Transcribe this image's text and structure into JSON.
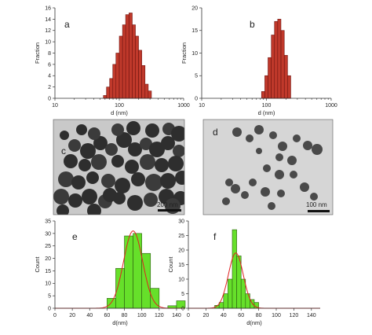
{
  "panel_letters": [
    "a",
    "b",
    "c",
    "d",
    "e",
    "f"
  ],
  "scale_bars": [
    "200 nm",
    "100 nm"
  ],
  "colors": {
    "histogram_top_fill": "#c0392b",
    "histogram_top_stroke": "#6e1410",
    "histogram_bottom_fill": "#66e02a",
    "histogram_bottom_stroke": "#2a5a10",
    "gaussian_fit": "#e02020",
    "tem_background_c": "#c9c9c9",
    "tem_background_d": "#d6d6d6",
    "particle_dark": "#2e2e2e"
  },
  "chart_data": [
    {
      "id": "a",
      "type": "bar",
      "xscale": "log",
      "xlim": [
        10,
        1000
      ],
      "ylim": [
        0,
        16
      ],
      "xticks": [
        10,
        100,
        1000
      ],
      "yticks": [
        0,
        2,
        4,
        6,
        8,
        10,
        12,
        14,
        16
      ],
      "xlabel": "d (nm)",
      "ylabel": "Fraction",
      "bin_step_log10": 0.05,
      "bin_centers": [
        60,
        67,
        75,
        84,
        94,
        106,
        119,
        133,
        150,
        168,
        188,
        211,
        237,
        266,
        298
      ],
      "values": [
        0.5,
        2,
        3.5,
        6,
        8,
        11,
        13,
        14.8,
        15.1,
        13,
        11,
        8.5,
        5.8,
        2.5,
        1.3
      ]
    },
    {
      "id": "b",
      "type": "bar",
      "xscale": "log",
      "xlim": [
        10,
        1000
      ],
      "ylim": [
        0,
        20
      ],
      "xticks": [
        10,
        100,
        1000
      ],
      "yticks": [
        0,
        5,
        10,
        15,
        20
      ],
      "xlabel": "d (nm)",
      "ylabel": "Fraction",
      "bin_step_log10": 0.05,
      "bin_centers": [
        89,
        100,
        112,
        126,
        141,
        158,
        178,
        200,
        224
      ],
      "values": [
        1.5,
        5,
        9,
        14,
        17,
        17.5,
        15,
        9.5,
        5
      ]
    },
    {
      "id": "e",
      "type": "bar",
      "xlim": [
        0,
        150
      ],
      "ylim": [
        0,
        35
      ],
      "xticks": [
        0,
        20,
        40,
        60,
        80,
        100,
        120,
        140
      ],
      "yticks": [
        0,
        5,
        10,
        15,
        20,
        25,
        30,
        35
      ],
      "xlabel": "d(nm)",
      "ylabel": "Count",
      "bin_width": 10,
      "bin_centers": [
        65,
        75,
        85,
        95,
        105,
        115,
        125,
        135,
        145
      ],
      "values": [
        4,
        16,
        29,
        30,
        22,
        8,
        0,
        1,
        3
      ],
      "fit": {
        "type": "gaussian",
        "amplitude": 31,
        "mean": 90,
        "sd": 11
      }
    },
    {
      "id": "f",
      "type": "bar",
      "xlim": [
        0,
        150
      ],
      "ylim": [
        0,
        30
      ],
      "xticks": [
        0,
        20,
        40,
        60,
        80,
        100,
        120,
        140
      ],
      "yticks": [
        0,
        5,
        10,
        15,
        20,
        25,
        30
      ],
      "xlabel": "d(nm)",
      "ylabel": "Count",
      "bin_width": 5,
      "bin_centers": [
        32.5,
        37.5,
        42.5,
        47.5,
        52.5,
        57.5,
        62.5,
        67.5,
        72.5,
        77.5
      ],
      "values": [
        1,
        2,
        5,
        10,
        27,
        18,
        10,
        5,
        3,
        2
      ],
      "fit": {
        "type": "gaussian",
        "amplitude": 19,
        "mean": 54,
        "sd": 8.5
      }
    }
  ]
}
